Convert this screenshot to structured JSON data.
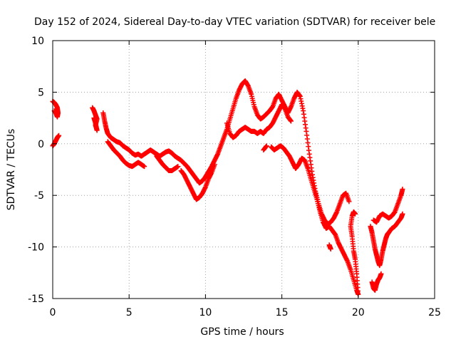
{
  "chart_data": {
    "type": "scatter",
    "title": "Day 152 of 2024, Sidereal Day-to-day VTEC variation (SDTVAR) for receiver bele",
    "xlabel": "GPS time / hours",
    "ylabel": "SDTVAR / TECUs",
    "xlim": [
      0,
      25
    ],
    "ylim": [
      -15,
      10
    ],
    "xticks": [
      0,
      5,
      10,
      15,
      20,
      25
    ],
    "yticks": [
      -15,
      -10,
      -5,
      0,
      5,
      10
    ],
    "xtick_labels": [
      "0",
      "5",
      "10",
      "15",
      "20",
      "25"
    ],
    "ytick_labels": [
      "-15",
      "-10",
      "-5",
      "0",
      "5",
      "10"
    ],
    "grid": true,
    "marker": "+",
    "color": "#ff0000",
    "series": [
      {
        "name": "track-a",
        "points": [
          [
            0.0,
            4.1
          ],
          [
            0.1,
            4.0
          ],
          [
            0.2,
            3.8
          ],
          [
            0.3,
            3.5
          ],
          [
            0.35,
            3.0
          ],
          [
            0.3,
            2.6
          ],
          [
            0.2,
            3.0
          ],
          [
            0.1,
            3.2
          ]
        ]
      },
      {
        "name": "track-b",
        "points": [
          [
            0.0,
            -0.2
          ],
          [
            0.1,
            0.0
          ],
          [
            0.2,
            0.3
          ],
          [
            0.3,
            0.6
          ],
          [
            0.4,
            0.8
          ]
        ]
      },
      {
        "name": "track-c",
        "points": [
          [
            2.6,
            3.5
          ],
          [
            2.7,
            3.2
          ],
          [
            2.8,
            2.8
          ],
          [
            2.9,
            2.4
          ],
          [
            2.8,
            1.8
          ],
          [
            2.9,
            1.3
          ],
          [
            2.8,
            2.0
          ],
          [
            2.7,
            2.5
          ]
        ]
      },
      {
        "name": "track-d",
        "points": [
          [
            3.3,
            3.0
          ],
          [
            3.4,
            2.2
          ],
          [
            3.5,
            1.5
          ],
          [
            3.6,
            1.0
          ],
          [
            3.8,
            0.6
          ],
          [
            4.0,
            0.4
          ],
          [
            4.2,
            0.2
          ],
          [
            4.4,
            0.1
          ],
          [
            4.6,
            -0.2
          ],
          [
            4.8,
            -0.4
          ],
          [
            5.0,
            -0.6
          ],
          [
            5.2,
            -0.9
          ],
          [
            5.4,
            -1.1
          ],
          [
            5.6,
            -1.0
          ],
          [
            5.8,
            -1.2
          ],
          [
            6.0,
            -1.0
          ],
          [
            6.2,
            -0.8
          ],
          [
            6.4,
            -0.6
          ],
          [
            6.6,
            -0.8
          ],
          [
            6.8,
            -1.0
          ],
          [
            7.0,
            -1.2
          ],
          [
            7.2,
            -1.0
          ],
          [
            7.4,
            -0.8
          ],
          [
            7.6,
            -0.7
          ],
          [
            7.8,
            -0.9
          ],
          [
            8.0,
            -1.2
          ],
          [
            8.2,
            -1.4
          ],
          [
            8.4,
            -1.6
          ],
          [
            8.6,
            -1.9
          ],
          [
            8.8,
            -2.2
          ],
          [
            9.0,
            -2.6
          ],
          [
            9.2,
            -3.0
          ],
          [
            9.4,
            -3.4
          ],
          [
            9.6,
            -3.8
          ],
          [
            9.8,
            -3.6
          ],
          [
            10.0,
            -3.2
          ],
          [
            10.2,
            -2.7
          ],
          [
            10.4,
            -2.2
          ],
          [
            10.6,
            -1.6
          ],
          [
            10.8,
            -1.0
          ],
          [
            11.0,
            -0.2
          ],
          [
            11.2,
            0.6
          ],
          [
            11.4,
            1.4
          ],
          [
            11.6,
            2.4
          ],
          [
            11.8,
            3.4
          ],
          [
            12.0,
            4.4
          ],
          [
            12.2,
            5.2
          ],
          [
            12.4,
            5.8
          ],
          [
            12.6,
            6.1
          ],
          [
            12.8,
            5.6
          ],
          [
            13.0,
            4.8
          ],
          [
            13.2,
            3.6
          ],
          [
            13.4,
            2.8
          ],
          [
            13.6,
            2.4
          ],
          [
            13.8,
            2.6
          ],
          [
            14.0,
            2.9
          ],
          [
            14.2,
            3.2
          ],
          [
            14.4,
            3.6
          ],
          [
            14.6,
            4.4
          ],
          [
            14.8,
            4.8
          ],
          [
            15.0,
            4.2
          ],
          [
            15.2,
            3.6
          ],
          [
            15.4,
            3.0
          ],
          [
            15.6,
            3.6
          ],
          [
            15.8,
            4.4
          ],
          [
            16.0,
            5.0
          ],
          [
            16.2,
            4.6
          ],
          [
            16.4,
            3.2
          ],
          [
            16.6,
            1.2
          ],
          [
            16.8,
            -1.0
          ],
          [
            17.0,
            -3.0
          ],
          [
            17.2,
            -4.6
          ],
          [
            17.4,
            -5.8
          ],
          [
            17.6,
            -6.8
          ],
          [
            17.8,
            -7.4
          ],
          [
            18.0,
            -7.8
          ],
          [
            18.2,
            -7.6
          ],
          [
            18.4,
            -7.2
          ],
          [
            18.6,
            -6.6
          ],
          [
            18.8,
            -5.8
          ],
          [
            19.0,
            -5.0
          ],
          [
            19.2,
            -4.8
          ],
          [
            19.4,
            -5.6
          ]
        ]
      },
      {
        "name": "track-e",
        "points": [
          [
            3.6,
            0.2
          ],
          [
            3.8,
            -0.2
          ],
          [
            4.0,
            -0.6
          ],
          [
            4.2,
            -0.9
          ],
          [
            4.4,
            -1.2
          ],
          [
            4.6,
            -1.6
          ],
          [
            4.8,
            -1.9
          ],
          [
            5.0,
            -2.1
          ],
          [
            5.2,
            -2.2
          ],
          [
            5.4,
            -2.0
          ],
          [
            5.6,
            -1.8
          ],
          [
            5.8,
            -2.0
          ],
          [
            6.0,
            -2.2
          ]
        ]
      },
      {
        "name": "track-f",
        "points": [
          [
            6.8,
            -1.2
          ],
          [
            7.0,
            -1.6
          ],
          [
            7.2,
            -2.0
          ],
          [
            7.4,
            -2.3
          ],
          [
            7.6,
            -2.6
          ],
          [
            7.8,
            -2.6
          ],
          [
            8.0,
            -2.4
          ],
          [
            8.2,
            -2.2
          ]
        ]
      },
      {
        "name": "track-g",
        "points": [
          [
            8.4,
            -2.6
          ],
          [
            8.6,
            -3.0
          ],
          [
            8.8,
            -3.6
          ],
          [
            9.0,
            -4.2
          ],
          [
            9.2,
            -4.8
          ],
          [
            9.4,
            -5.4
          ],
          [
            9.6,
            -5.2
          ],
          [
            9.8,
            -4.8
          ],
          [
            10.0,
            -4.2
          ],
          [
            10.2,
            -3.4
          ],
          [
            10.4,
            -2.8
          ],
          [
            10.6,
            -2.0
          ]
        ]
      },
      {
        "name": "track-h",
        "points": [
          [
            11.4,
            2.0
          ],
          [
            11.6,
            1.0
          ],
          [
            11.8,
            0.6
          ],
          [
            12.0,
            0.8
          ],
          [
            12.2,
            1.2
          ],
          [
            12.4,
            1.4
          ],
          [
            12.6,
            1.6
          ],
          [
            12.8,
            1.4
          ],
          [
            13.0,
            1.2
          ],
          [
            13.2,
            1.2
          ],
          [
            13.4,
            1.0
          ],
          [
            13.6,
            1.2
          ],
          [
            13.8,
            1.0
          ],
          [
            14.0,
            1.4
          ],
          [
            14.2,
            1.6
          ],
          [
            14.4,
            2.0
          ],
          [
            14.6,
            2.6
          ],
          [
            14.8,
            3.2
          ],
          [
            15.0,
            3.8
          ],
          [
            15.2,
            3.4
          ],
          [
            15.4,
            2.6
          ],
          [
            15.6,
            2.2
          ]
        ]
      },
      {
        "name": "track-i",
        "points": [
          [
            14.3,
            -0.3
          ],
          [
            14.5,
            -0.6
          ],
          [
            14.7,
            -0.4
          ],
          [
            14.9,
            -0.2
          ],
          [
            15.1,
            -0.4
          ],
          [
            15.3,
            -0.8
          ],
          [
            15.5,
            -1.2
          ],
          [
            15.7,
            -1.8
          ],
          [
            15.9,
            -2.4
          ],
          [
            16.1,
            -2.0
          ],
          [
            16.3,
            -1.4
          ],
          [
            16.5,
            -1.6
          ],
          [
            16.7,
            -2.4
          ],
          [
            16.9,
            -3.4
          ],
          [
            17.1,
            -4.4
          ],
          [
            17.3,
            -5.4
          ],
          [
            17.5,
            -6.6
          ],
          [
            17.7,
            -7.6
          ],
          [
            17.9,
            -8.2
          ],
          [
            18.1,
            -8.0
          ],
          [
            18.3,
            -8.4
          ],
          [
            18.5,
            -8.8
          ],
          [
            18.7,
            -9.6
          ],
          [
            18.9,
            -10.2
          ],
          [
            19.1,
            -10.8
          ],
          [
            19.3,
            -11.4
          ],
          [
            19.5,
            -12.2
          ],
          [
            19.7,
            -13.2
          ],
          [
            19.9,
            -14.2
          ],
          [
            20.0,
            -14.6
          ],
          [
            19.9,
            -12.6
          ],
          [
            19.8,
            -11.2
          ],
          [
            19.7,
            -10.4
          ],
          [
            19.6,
            -9.0
          ],
          [
            19.5,
            -8.0
          ],
          [
            19.6,
            -7.0
          ],
          [
            19.7,
            -6.6
          ],
          [
            19.8,
            -6.8
          ]
        ]
      },
      {
        "name": "track-j",
        "points": [
          [
            13.8,
            -0.6
          ],
          [
            14.0,
            -0.2
          ]
        ]
      },
      {
        "name": "track-k",
        "points": [
          [
            18.1,
            -9.8
          ],
          [
            18.2,
            -10.2
          ]
        ]
      },
      {
        "name": "track-l",
        "points": [
          [
            20.8,
            -8.0
          ],
          [
            20.9,
            -8.6
          ],
          [
            21.0,
            -9.4
          ],
          [
            21.1,
            -10.2
          ],
          [
            21.2,
            -10.8
          ],
          [
            21.3,
            -11.4
          ],
          [
            21.4,
            -11.8
          ],
          [
            21.5,
            -11.2
          ],
          [
            21.6,
            -10.4
          ],
          [
            21.7,
            -9.8
          ],
          [
            21.8,
            -9.2
          ],
          [
            21.9,
            -8.8
          ],
          [
            22.0,
            -8.6
          ],
          [
            22.2,
            -8.2
          ],
          [
            22.4,
            -8.0
          ],
          [
            22.6,
            -7.6
          ],
          [
            22.8,
            -7.2
          ],
          [
            22.9,
            -6.8
          ]
        ]
      },
      {
        "name": "track-m",
        "points": [
          [
            21.0,
            -7.4
          ],
          [
            21.2,
            -7.6
          ],
          [
            21.4,
            -7.0
          ],
          [
            21.6,
            -6.8
          ],
          [
            21.8,
            -7.0
          ],
          [
            22.0,
            -7.2
          ],
          [
            22.2,
            -7.0
          ],
          [
            22.4,
            -6.6
          ],
          [
            22.6,
            -5.8
          ],
          [
            22.8,
            -5.0
          ],
          [
            22.9,
            -4.4
          ]
        ]
      },
      {
        "name": "track-n",
        "points": [
          [
            20.9,
            -13.4
          ],
          [
            21.0,
            -14.0
          ],
          [
            21.1,
            -14.2
          ],
          [
            21.2,
            -13.6
          ],
          [
            21.3,
            -13.2
          ],
          [
            21.4,
            -13.0
          ],
          [
            21.5,
            -12.6
          ]
        ]
      }
    ]
  }
}
